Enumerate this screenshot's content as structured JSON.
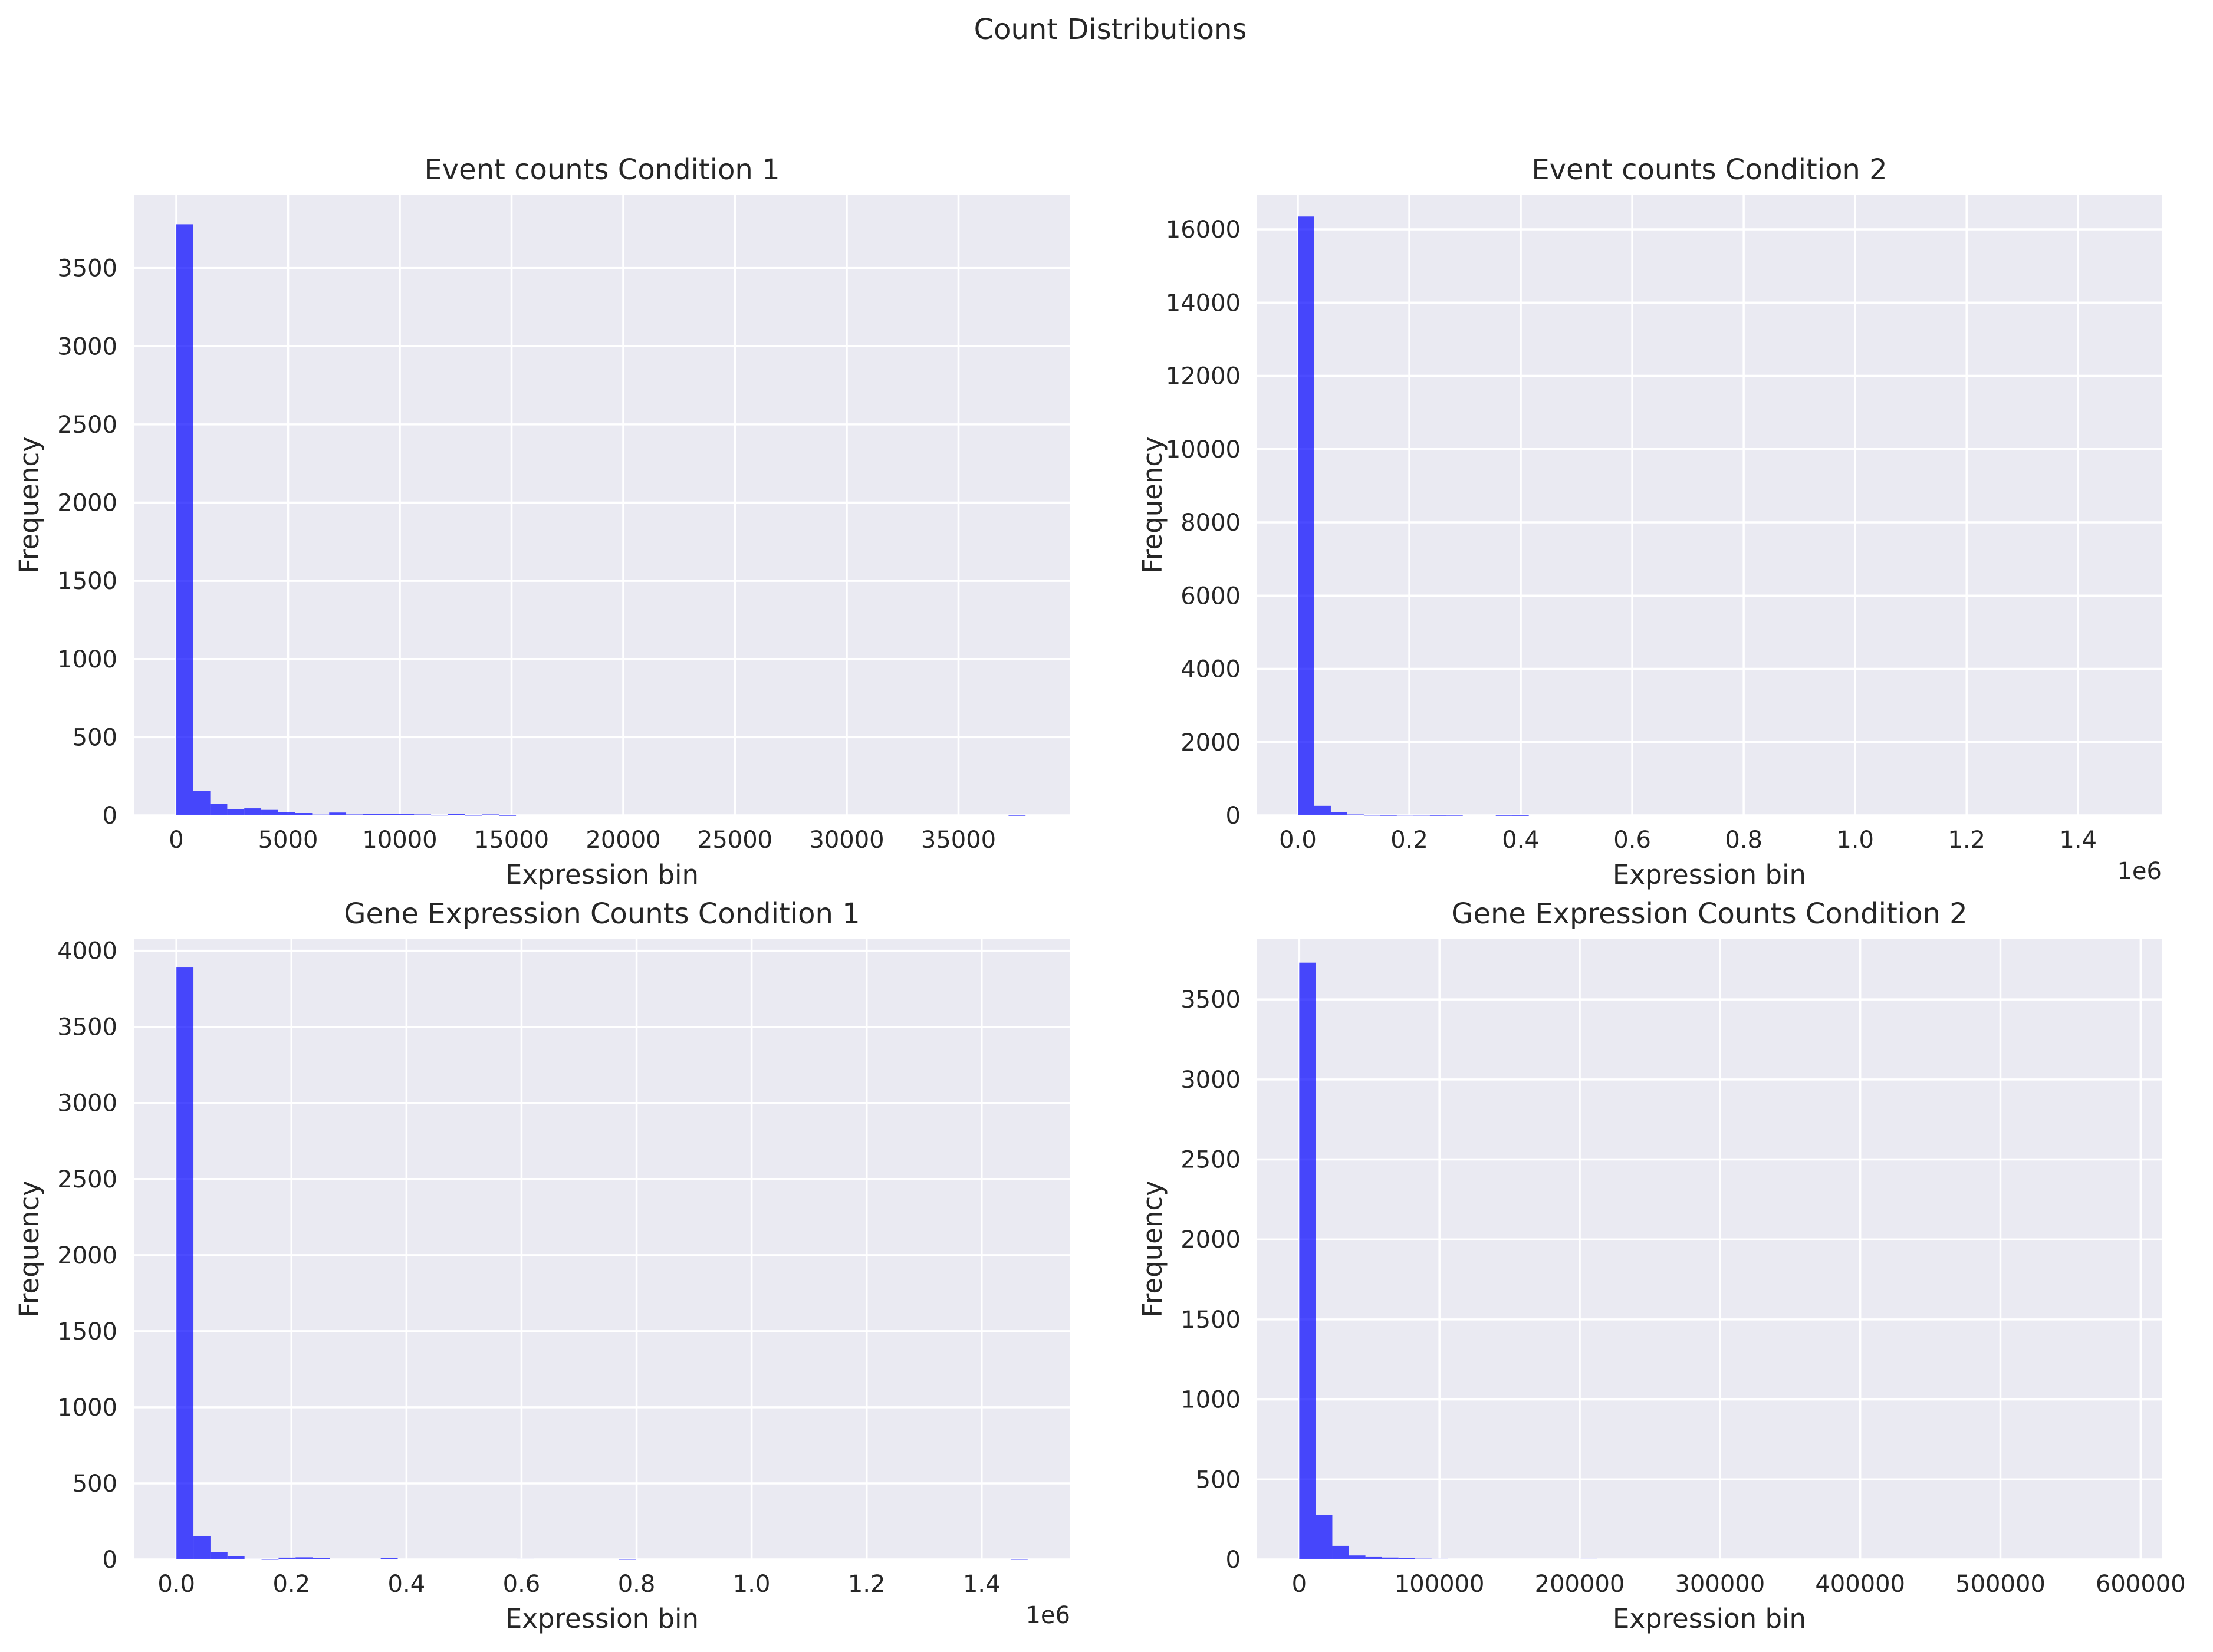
{
  "figure": {
    "title": "Count Distributions"
  },
  "colors": {
    "bar": "#0000ff",
    "axes_bg": "#eaeaf2",
    "grid": "#ffffff",
    "text": "#262626"
  },
  "chart_data": [
    {
      "type": "bar",
      "title": "Event counts Condition 1",
      "xlabel": "Expression bin",
      "ylabel": "Frequency",
      "x_offset_label": "",
      "xlim": [
        -1900,
        40000
      ],
      "ylim": [
        0,
        3970
      ],
      "xticks": [
        0,
        5000,
        10000,
        15000,
        20000,
        25000,
        30000,
        35000
      ],
      "xtick_labels": [
        "0",
        "5000",
        "10000",
        "15000",
        "20000",
        "25000",
        "30000",
        "35000"
      ],
      "yticks": [
        0,
        500,
        1000,
        1500,
        2000,
        2500,
        3000,
        3500
      ],
      "ytick_labels": [
        "0",
        "500",
        "1000",
        "1500",
        "2000",
        "2500",
        "3000",
        "3500"
      ],
      "grid": true,
      "bin_start": 0,
      "bin_width": 760,
      "values": [
        3780,
        155,
        75,
        40,
        45,
        35,
        22,
        15,
        5,
        18,
        6,
        9,
        10,
        8,
        6,
        3,
        8,
        2,
        6,
        1,
        0,
        0,
        0,
        0,
        0,
        0,
        0,
        0,
        0,
        0,
        0,
        0,
        0,
        0,
        0,
        0,
        0,
        0,
        0,
        0,
        0,
        0,
        0,
        0,
        0,
        0,
        0,
        0,
        0,
        1
      ]
    },
    {
      "type": "bar",
      "title": "Event counts Condition 2",
      "xlabel": "Expression bin",
      "ylabel": "Frequency",
      "x_offset_label": "1e6",
      "xlim": [
        -73000,
        1550000
      ],
      "ylim": [
        0,
        16950
      ],
      "xticks": [
        0,
        200000,
        400000,
        600000,
        800000,
        1000000,
        1200000,
        1400000
      ],
      "xtick_labels": [
        "0.0",
        "0.2",
        "0.4",
        "0.6",
        "0.8",
        "1.0",
        "1.2",
        "1.4"
      ],
      "yticks": [
        0,
        2000,
        4000,
        6000,
        8000,
        10000,
        12000,
        14000,
        16000
      ],
      "ytick_labels": [
        "0",
        "2000",
        "4000",
        "6000",
        "8000",
        "10000",
        "12000",
        "14000",
        "16000"
      ],
      "grid": true,
      "bin_start": 0,
      "bin_width": 29600,
      "values": [
        16350,
        260,
        90,
        25,
        10,
        5,
        12,
        10,
        4,
        5,
        0,
        0,
        3,
        2,
        0,
        0,
        0,
        0,
        0,
        0,
        0,
        0,
        0,
        0,
        0,
        0,
        0,
        0,
        0,
        0,
        0,
        0,
        0,
        0,
        0,
        0,
        0,
        0,
        0,
        0,
        0,
        0,
        0,
        0,
        0,
        0,
        0,
        0,
        0,
        0
      ]
    },
    {
      "type": "bar",
      "title": "Gene Expression Counts Condition 1",
      "xlabel": "Expression bin",
      "ylabel": "Frequency",
      "x_offset_label": "1e6",
      "xlim": [
        -74000,
        1554000
      ],
      "ylim": [
        0,
        4080
      ],
      "xticks": [
        0,
        200000,
        400000,
        600000,
        800000,
        1000000,
        1200000,
        1400000
      ],
      "xtick_labels": [
        "0.0",
        "0.2",
        "0.4",
        "0.6",
        "0.8",
        "1.0",
        "1.2",
        "1.4"
      ],
      "yticks": [
        0,
        500,
        1000,
        1500,
        2000,
        2500,
        3000,
        3500,
        4000
      ],
      "ytick_labels": [
        "0",
        "500",
        "1000",
        "1500",
        "2000",
        "2500",
        "3000",
        "3500",
        "4000"
      ],
      "grid": true,
      "bin_start": 0,
      "bin_width": 29600,
      "values": [
        3890,
        155,
        50,
        20,
        4,
        2,
        12,
        14,
        8,
        0,
        0,
        0,
        10,
        0,
        0,
        0,
        0,
        0,
        0,
        0,
        4,
        0,
        0,
        0,
        0,
        0,
        2,
        0,
        0,
        0,
        0,
        0,
        0,
        0,
        0,
        0,
        0,
        0,
        0,
        0,
        0,
        0,
        0,
        0,
        0,
        0,
        0,
        0,
        0,
        2
      ]
    },
    {
      "type": "bar",
      "title": "Gene Expression Counts Condition 2",
      "xlabel": "Expression bin",
      "ylabel": "Frequency",
      "x_offset_label": "",
      "xlim": [
        -30000,
        615000
      ],
      "ylim": [
        0,
        3880
      ],
      "xticks": [
        0,
        100000,
        200000,
        300000,
        400000,
        500000,
        600000
      ],
      "xtick_labels": [
        "0",
        "100000",
        "200000",
        "300000",
        "400000",
        "500000",
        "600000"
      ],
      "yticks": [
        0,
        500,
        1000,
        1500,
        2000,
        2500,
        3000,
        3500
      ],
      "ytick_labels": [
        "0",
        "500",
        "1000",
        "1500",
        "2000",
        "2500",
        "3000",
        "3500"
      ],
      "grid": true,
      "bin_start": 0,
      "bin_width": 11800,
      "values": [
        3730,
        280,
        85,
        25,
        15,
        12,
        8,
        5,
        4,
        0,
        0,
        0,
        0,
        0,
        0,
        0,
        0,
        4,
        0,
        0,
        0,
        0,
        0,
        0,
        0,
        0,
        0,
        0,
        0,
        0,
        0,
        0,
        0,
        0,
        0,
        0,
        0,
        0,
        0,
        0,
        0,
        0,
        0,
        0,
        0,
        0,
        0,
        0,
        0,
        0
      ]
    }
  ]
}
